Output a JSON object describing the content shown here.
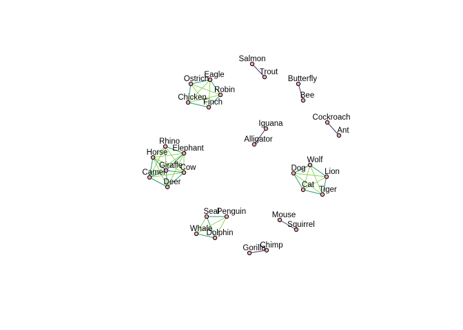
{
  "colors": {
    "node_fill": "#f4a6b4",
    "node_stroke": "#000000",
    "edge_strong": "#2a9d6e",
    "edge_weak": "#8fd45a",
    "edge_purple": "#4b2a6e",
    "label": "#000000"
  },
  "nodes": [
    {
      "id": "salmon",
      "label": "Salmon"
    },
    {
      "id": "trout",
      "label": "Trout"
    },
    {
      "id": "butterfly",
      "label": "Butterfly"
    },
    {
      "id": "bee",
      "label": "Bee"
    },
    {
      "id": "cockroach",
      "label": "Cockroach"
    },
    {
      "id": "ant",
      "label": "Ant"
    },
    {
      "id": "ostrich",
      "label": "Ostrich"
    },
    {
      "id": "eagle",
      "label": "Eagle"
    },
    {
      "id": "robin",
      "label": "Robin"
    },
    {
      "id": "chicken",
      "label": "Chicken"
    },
    {
      "id": "finch",
      "label": "Finch"
    },
    {
      "id": "iguana",
      "label": "Iguana"
    },
    {
      "id": "alligator",
      "label": "Alligator"
    },
    {
      "id": "rhino",
      "label": "Rhino"
    },
    {
      "id": "horse",
      "label": "Horse"
    },
    {
      "id": "elephant",
      "label": "Elephant"
    },
    {
      "id": "giraffe",
      "label": "Giraffe"
    },
    {
      "id": "cow",
      "label": "Cow"
    },
    {
      "id": "camel",
      "label": "Camel"
    },
    {
      "id": "deer",
      "label": "Deer"
    },
    {
      "id": "wolf",
      "label": "Wolf"
    },
    {
      "id": "dog",
      "label": "Dog"
    },
    {
      "id": "lion",
      "label": "Lion"
    },
    {
      "id": "cat",
      "label": "Cat"
    },
    {
      "id": "tiger",
      "label": "Tiger"
    },
    {
      "id": "seal",
      "label": "Seal"
    },
    {
      "id": "penguin",
      "label": "Penguin"
    },
    {
      "id": "whale",
      "label": "Whale"
    },
    {
      "id": "dolphin",
      "label": "Dolphin"
    },
    {
      "id": "mouse",
      "label": "Mouse"
    },
    {
      "id": "squirrel",
      "label": "Squirrel"
    },
    {
      "id": "gorilla",
      "label": "Gorilla"
    },
    {
      "id": "chimp",
      "label": "Chimp"
    }
  ],
  "edges": [
    {
      "source": "salmon",
      "target": "trout",
      "tone": "purple"
    },
    {
      "source": "butterfly",
      "target": "bee",
      "tone": "purple"
    },
    {
      "source": "cockroach",
      "target": "ant",
      "tone": "purple"
    },
    {
      "source": "gorilla",
      "target": "chimp",
      "tone": "purple"
    },
    {
      "source": "mouse",
      "target": "squirrel",
      "tone": "purple"
    },
    {
      "source": "iguana",
      "target": "alligator",
      "tone": "purple"
    },
    {
      "source": "ostrich",
      "target": "eagle",
      "tone": "strong"
    },
    {
      "source": "ostrich",
      "target": "robin",
      "tone": "weak"
    },
    {
      "source": "ostrich",
      "target": "chicken",
      "tone": "strong"
    },
    {
      "source": "ostrich",
      "target": "finch",
      "tone": "weak"
    },
    {
      "source": "eagle",
      "target": "robin",
      "tone": "strong"
    },
    {
      "source": "eagle",
      "target": "chicken",
      "tone": "weak"
    },
    {
      "source": "eagle",
      "target": "finch",
      "tone": "weak"
    },
    {
      "source": "robin",
      "target": "chicken",
      "tone": "weak"
    },
    {
      "source": "robin",
      "target": "finch",
      "tone": "strong"
    },
    {
      "source": "chicken",
      "target": "finch",
      "tone": "strong"
    },
    {
      "source": "rhino",
      "target": "horse",
      "tone": "weak"
    },
    {
      "source": "rhino",
      "target": "elephant",
      "tone": "strong"
    },
    {
      "source": "rhino",
      "target": "giraffe",
      "tone": "weak"
    },
    {
      "source": "rhino",
      "target": "cow",
      "tone": "weak"
    },
    {
      "source": "rhino",
      "target": "camel",
      "tone": "weak"
    },
    {
      "source": "horse",
      "target": "elephant",
      "tone": "weak"
    },
    {
      "source": "horse",
      "target": "giraffe",
      "tone": "strong"
    },
    {
      "source": "horse",
      "target": "cow",
      "tone": "weak"
    },
    {
      "source": "horse",
      "target": "camel",
      "tone": "strong"
    },
    {
      "source": "horse",
      "target": "deer",
      "tone": "weak"
    },
    {
      "source": "elephant",
      "target": "giraffe",
      "tone": "strong"
    },
    {
      "source": "elephant",
      "target": "cow",
      "tone": "weak"
    },
    {
      "source": "elephant",
      "target": "camel",
      "tone": "weak"
    },
    {
      "source": "elephant",
      "target": "deer",
      "tone": "weak"
    },
    {
      "source": "giraffe",
      "target": "cow",
      "tone": "strong"
    },
    {
      "source": "giraffe",
      "target": "camel",
      "tone": "strong"
    },
    {
      "source": "giraffe",
      "target": "deer",
      "tone": "strong"
    },
    {
      "source": "cow",
      "target": "camel",
      "tone": "weak"
    },
    {
      "source": "cow",
      "target": "deer",
      "tone": "strong"
    },
    {
      "source": "camel",
      "target": "deer",
      "tone": "strong"
    },
    {
      "source": "wolf",
      "target": "dog",
      "tone": "strong"
    },
    {
      "source": "wolf",
      "target": "lion",
      "tone": "strong"
    },
    {
      "source": "wolf",
      "target": "cat",
      "tone": "weak"
    },
    {
      "source": "wolf",
      "target": "tiger",
      "tone": "weak"
    },
    {
      "source": "dog",
      "target": "lion",
      "tone": "weak"
    },
    {
      "source": "dog",
      "target": "cat",
      "tone": "strong"
    },
    {
      "source": "dog",
      "target": "tiger",
      "tone": "weak"
    },
    {
      "source": "lion",
      "target": "cat",
      "tone": "weak"
    },
    {
      "source": "lion",
      "target": "tiger",
      "tone": "strong"
    },
    {
      "source": "cat",
      "target": "tiger",
      "tone": "strong"
    },
    {
      "source": "seal",
      "target": "penguin",
      "tone": "strong"
    },
    {
      "source": "seal",
      "target": "whale",
      "tone": "weak"
    },
    {
      "source": "seal",
      "target": "dolphin",
      "tone": "strong"
    },
    {
      "source": "penguin",
      "target": "whale",
      "tone": "weak"
    },
    {
      "source": "penguin",
      "target": "dolphin",
      "tone": "weak"
    },
    {
      "source": "whale",
      "target": "dolphin",
      "tone": "strong"
    }
  ]
}
